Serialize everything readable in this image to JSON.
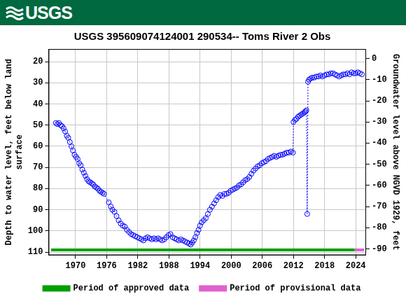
{
  "chart_data": {
    "type": "scatter",
    "header": "USGS",
    "title": "USGS 395609074124001 290534-- Toms River 2 Obs",
    "ylabel": [
      "Depth to water level, feet below land",
      "surface"
    ],
    "y2label": "Groundwater level above NGVD 1929, feet",
    "xlim": [
      1964.8,
      2026
    ],
    "xticks": [
      1970,
      1976,
      1982,
      1988,
      1994,
      2000,
      2006,
      2012,
      2018,
      2024
    ],
    "ylim": [
      111.5,
      14
    ],
    "yticks": [
      20,
      30,
      40,
      50,
      60,
      70,
      80,
      90,
      100,
      110
    ],
    "y2lim": [
      -93,
      4.5
    ],
    "y2ticks": [
      0,
      -10,
      -20,
      -30,
      -40,
      -50,
      -60,
      -70,
      -80,
      -90
    ],
    "grid": true,
    "legend": "bottom",
    "series": [
      {
        "color": "#0000ff",
        "marker": "circle",
        "line_style": "dotted",
        "x": [
          1966.2,
          1966.5,
          1966.8,
          1967.1,
          1967.4,
          1967.7,
          1968.0,
          1968.3,
          1968.6,
          1968.9,
          1969.2,
          1969.5,
          1969.8,
          1970.1,
          1970.4,
          1970.7,
          1971.0,
          1971.3,
          1971.6,
          1971.9,
          1972.2,
          1972.5,
          1972.8,
          1973.1,
          1973.4,
          1973.7,
          1974.0,
          1974.3,
          1974.6,
          1974.9,
          1975.2,
          1975.5,
          1976.4,
          1976.8,
          1977.1,
          1977.5,
          1977.9,
          1978.3,
          1978.7,
          1979.1,
          1979.5,
          1979.9,
          1980.3,
          1980.7,
          1981.1,
          1981.5,
          1981.9,
          1982.3,
          1982.7,
          1983.1,
          1983.5,
          1983.9,
          1984.3,
          1984.7,
          1985.1,
          1985.5,
          1985.9,
          1986.3,
          1986.7,
          1987.1,
          1987.5,
          1987.9,
          1988.3,
          1988.7,
          1989.1,
          1989.5,
          1989.9,
          1990.3,
          1990.7,
          1991.1,
          1991.5,
          1991.9,
          1992.2,
          1992.5,
          1992.8,
          1993.1,
          1993.4,
          1993.7,
          1994.0,
          1994.3,
          1994.7,
          1995.1,
          1995.5,
          1995.9,
          1996.3,
          1996.7,
          1997.1,
          1997.5,
          1997.9,
          1998.3,
          1998.7,
          1999.1,
          1999.5,
          1999.9,
          2000.3,
          2000.7,
          2001.1,
          2001.5,
          2001.9,
          2002.3,
          2002.7,
          2003.1,
          2003.5,
          2003.9,
          2004.3,
          2004.7,
          2005.1,
          2005.5,
          2005.9,
          2006.3,
          2006.7,
          2007.1,
          2007.5,
          2007.9,
          2008.3,
          2008.7,
          2009.1,
          2009.5,
          2009.9,
          2010.3,
          2010.7,
          2011.1,
          2011.5,
          2011.9,
          2012.0,
          2012.3,
          2012.6,
          2012.9,
          2013.2,
          2013.5,
          2013.8,
          2014.1,
          2014.3,
          2014.5,
          2014.65,
          2014.8,
          2015.0,
          2015.3,
          2015.6,
          2016.0,
          2016.4,
          2016.8,
          2017.2,
          2017.6,
          2018.0,
          2018.4,
          2018.8,
          2019.2,
          2019.6,
          2020.0,
          2020.4,
          2020.8,
          2021.2,
          2021.6,
          2022.0,
          2022.4,
          2022.8,
          2023.2,
          2023.6,
          2024.0,
          2024.4,
          2024.8,
          2025.2
        ],
        "values": [
          49,
          49.5,
          49,
          50,
          50.5,
          51.5,
          53,
          55,
          56,
          58,
          60,
          62,
          64,
          65,
          66,
          68,
          69,
          71,
          72.5,
          74,
          75.5,
          76.5,
          77,
          77.5,
          78,
          79,
          79.5,
          80,
          81,
          81.5,
          82,
          82.5,
          86.5,
          88.5,
          90,
          91,
          93,
          95,
          96.5,
          97.5,
          98,
          99.5,
          100.5,
          101.5,
          102,
          102.5,
          103,
          103.5,
          104,
          104.5,
          103.5,
          103,
          103.5,
          104,
          103.5,
          104,
          103.5,
          104,
          104.5,
          104,
          103,
          102,
          101.5,
          103,
          103.5,
          104,
          104.5,
          104,
          104.5,
          105,
          105.5,
          106,
          106.5,
          105.5,
          104.5,
          103,
          101,
          99.5,
          97.5,
          96,
          95,
          94,
          92,
          90,
          88.5,
          87,
          85.5,
          84,
          83,
          83.5,
          82.5,
          82.5,
          82,
          81,
          80.5,
          80,
          79.5,
          78.5,
          78,
          77,
          76,
          75.5,
          74.5,
          73,
          71.5,
          70.5,
          69.5,
          69,
          68,
          67.5,
          67,
          66,
          65.5,
          65,
          64.5,
          65,
          64.5,
          64,
          64,
          63.5,
          63,
          63,
          62.5,
          63,
          48.5,
          47.5,
          47,
          46,
          45.5,
          45,
          44.5,
          44,
          43.5,
          43,
          92,
          29.5,
          28.5,
          28,
          27.5,
          27.5,
          27,
          27,
          26.5,
          27,
          26.5,
          26,
          26,
          25.5,
          25.5,
          26,
          26.5,
          27,
          26.5,
          26,
          26,
          25.5,
          26,
          25,
          25.5,
          25.5,
          25,
          25.5,
          26
        ]
      },
      {
        "name": "Period of approved data",
        "type": "line",
        "color": "#00a000",
        "marker": "none",
        "line_style": "solid",
        "x": [
          1965.3,
          2023.8
        ],
        "values": [
          109,
          109
        ]
      },
      {
        "name": "Period of provisional data",
        "type": "line",
        "color": "#e060d0",
        "marker": "none",
        "line_style": "solid",
        "x": [
          2023.8,
          2025.6
        ],
        "values": [
          109,
          109
        ]
      }
    ]
  }
}
